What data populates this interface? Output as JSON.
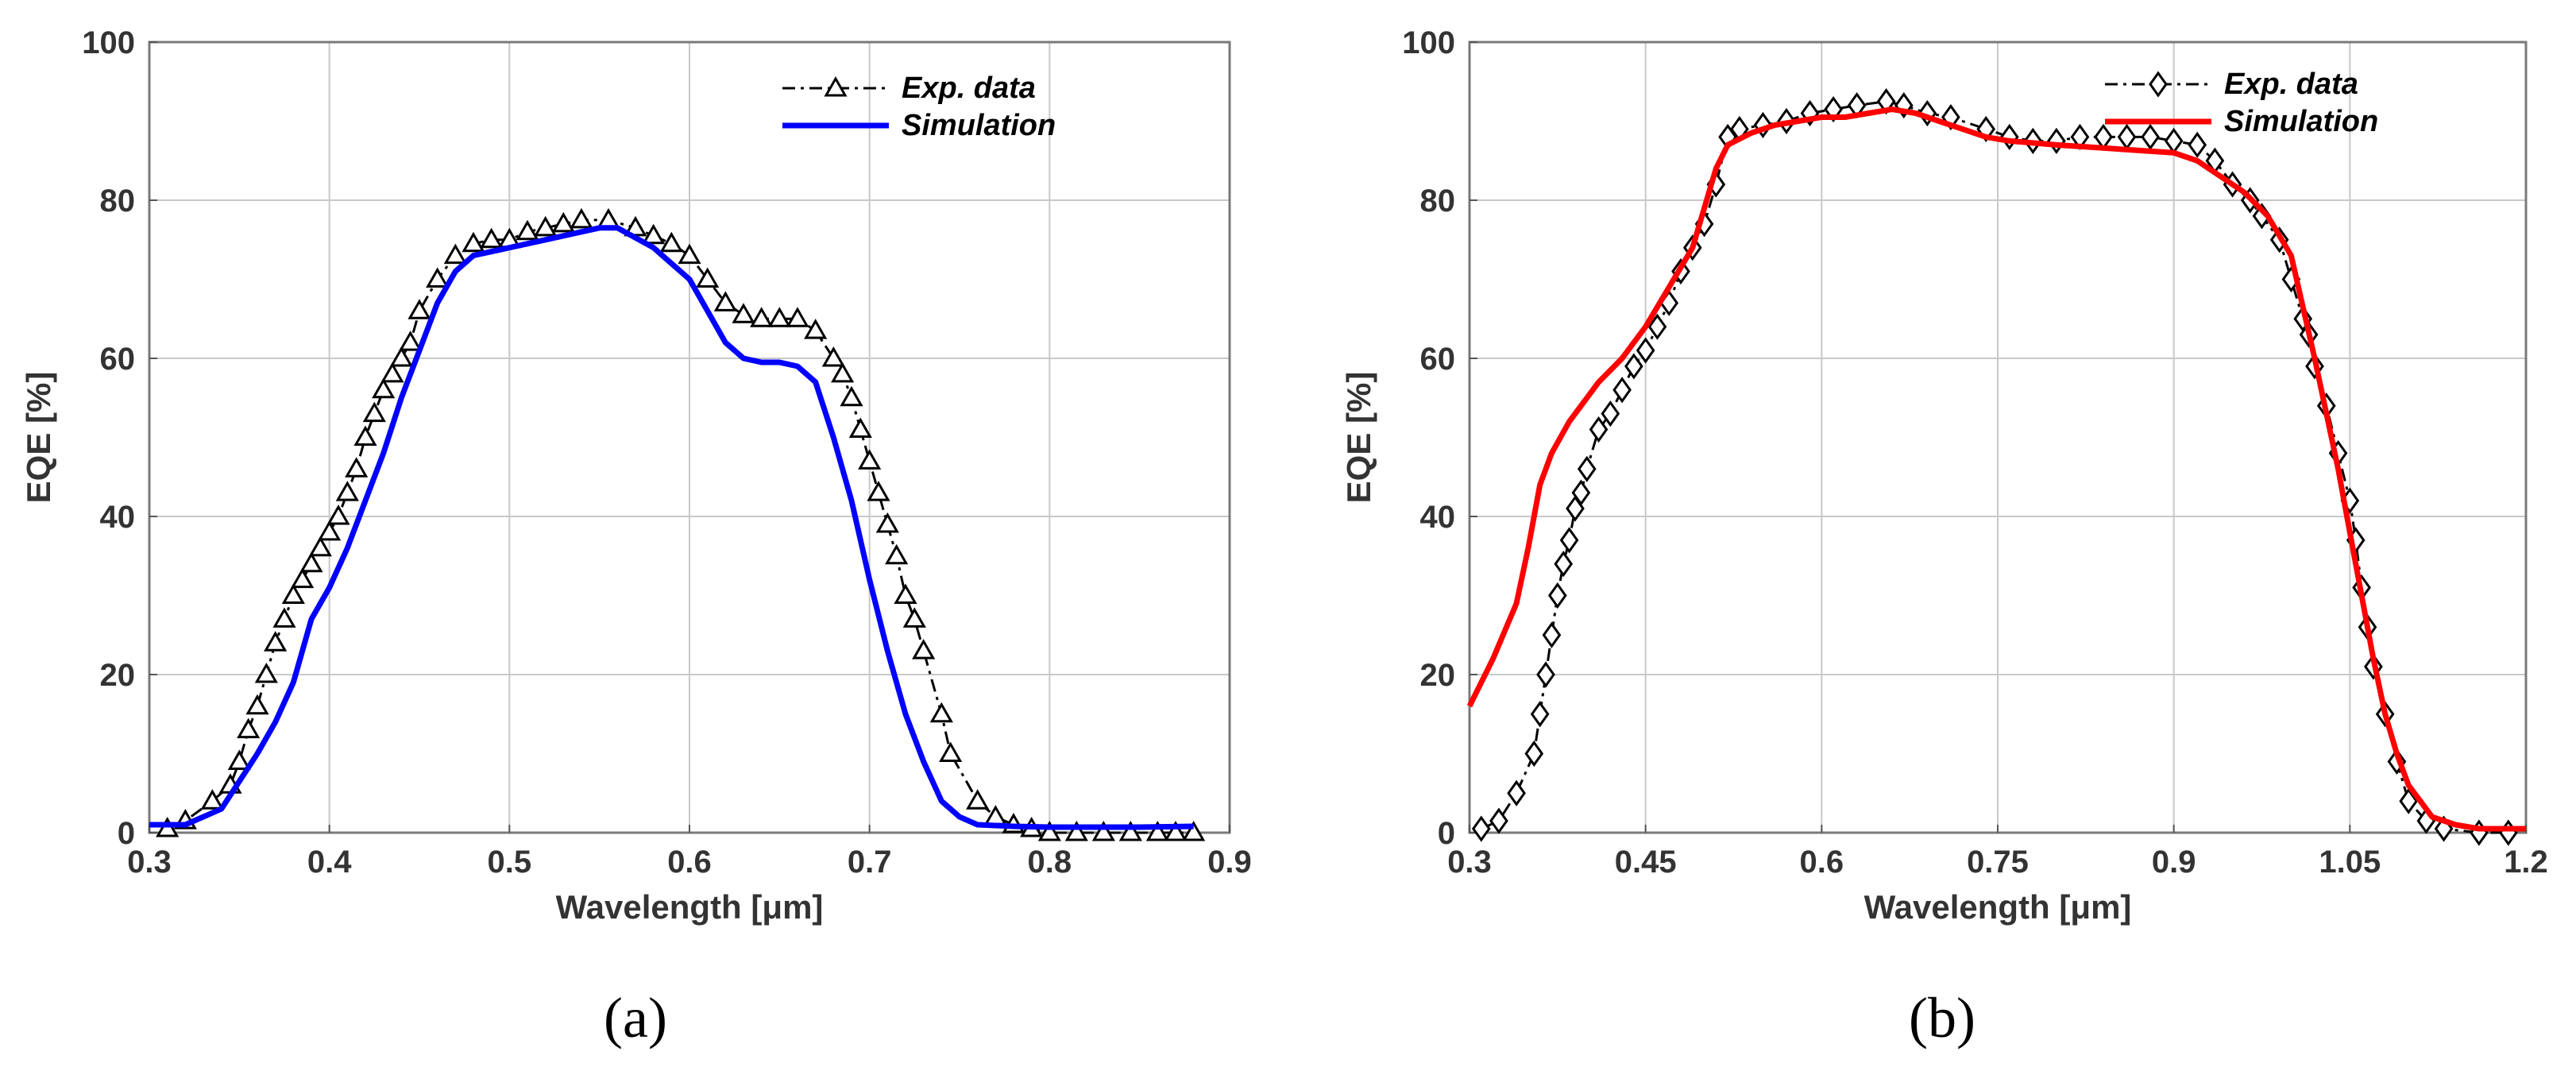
{
  "chart_data": [
    {
      "type": "line",
      "panel_label": "(a)",
      "xlabel": "Wavelength [μm]",
      "ylabel": "EQE [%]",
      "xlim": [
        0.3,
        0.9
      ],
      "ylim": [
        0,
        100
      ],
      "xticks": [
        "0.3",
        "0.4",
        "0.5",
        "0.6",
        "0.7",
        "0.8",
        "0.9"
      ],
      "xtick_values": [
        0.3,
        0.4,
        0.5,
        0.6,
        0.7,
        0.8,
        0.9
      ],
      "yticks": [
        "0",
        "20",
        "40",
        "60",
        "80",
        "100"
      ],
      "ytick_values": [
        0,
        20,
        40,
        60,
        80,
        100
      ],
      "grid": true,
      "legend_position": "top-right",
      "series": [
        {
          "name": "Exp. data",
          "color": "#000000",
          "style": "dash-dot",
          "marker": "triangle",
          "x": [
            0.31,
            0.32,
            0.335,
            0.345,
            0.35,
            0.355,
            0.36,
            0.365,
            0.37,
            0.375,
            0.38,
            0.385,
            0.39,
            0.395,
            0.4,
            0.405,
            0.41,
            0.415,
            0.42,
            0.425,
            0.43,
            0.435,
            0.44,
            0.445,
            0.45,
            0.46,
            0.47,
            0.48,
            0.49,
            0.5,
            0.51,
            0.52,
            0.53,
            0.54,
            0.555,
            0.57,
            0.58,
            0.59,
            0.6,
            0.61,
            0.62,
            0.63,
            0.64,
            0.65,
            0.66,
            0.67,
            0.68,
            0.685,
            0.69,
            0.695,
            0.7,
            0.705,
            0.71,
            0.715,
            0.72,
            0.725,
            0.73,
            0.74,
            0.745,
            0.76,
            0.77,
            0.78,
            0.79,
            0.8,
            0.815,
            0.83,
            0.845,
            0.86,
            0.87,
            0.88
          ],
          "y": [
            0.5,
            1.5,
            4,
            6,
            9,
            13,
            16,
            20,
            24,
            27,
            30,
            32,
            34,
            36,
            38,
            40,
            43,
            46,
            50,
            53,
            56,
            58,
            60,
            62,
            66,
            70,
            73,
            74.5,
            75,
            75,
            76,
            76.5,
            77,
            77.5,
            77.5,
            76.5,
            75.5,
            74.5,
            73,
            70,
            67,
            65.5,
            65,
            65,
            65,
            63.5,
            60,
            58,
            55,
            51,
            47,
            43,
            39,
            35,
            30,
            27,
            23,
            15,
            10,
            4,
            2,
            1,
            0.5,
            0,
            0,
            0,
            0,
            0,
            0,
            0
          ]
        },
        {
          "name": "Simulation",
          "color": "#0000ff",
          "style": "solid",
          "x": [
            0.3,
            0.32,
            0.34,
            0.36,
            0.37,
            0.38,
            0.385,
            0.39,
            0.4,
            0.41,
            0.42,
            0.43,
            0.44,
            0.45,
            0.46,
            0.47,
            0.48,
            0.5,
            0.52,
            0.54,
            0.55,
            0.56,
            0.58,
            0.6,
            0.61,
            0.62,
            0.63,
            0.64,
            0.65,
            0.66,
            0.67,
            0.68,
            0.69,
            0.7,
            0.71,
            0.72,
            0.73,
            0.74,
            0.75,
            0.76,
            0.78,
            0.8,
            0.85,
            0.88
          ],
          "y": [
            1,
            1,
            3,
            10,
            14,
            19,
            23,
            27,
            31,
            36,
            42,
            48,
            55,
            61,
            67,
            71,
            73,
            74,
            75,
            76,
            76.5,
            76.5,
            74,
            70,
            66,
            62,
            60,
            59.5,
            59.5,
            59,
            57,
            50,
            42,
            32,
            23,
            15,
            9,
            4,
            2,
            1,
            0.8,
            0.7,
            0.7,
            0.8
          ]
        }
      ]
    },
    {
      "type": "line",
      "panel_label": "(b)",
      "xlabel": "Wavelength [μm]",
      "ylabel": "EQE [%]",
      "xlim": [
        0.3,
        1.2
      ],
      "ylim": [
        0,
        100
      ],
      "xticks": [
        "0.3",
        "0.45",
        "0.6",
        "0.75",
        "0.9",
        "1.05",
        "1.2"
      ],
      "xtick_values": [
        0.3,
        0.45,
        0.6,
        0.75,
        0.9,
        1.05,
        1.2
      ],
      "yticks": [
        "0",
        "20",
        "40",
        "60",
        "80",
        "100"
      ],
      "ytick_values": [
        0,
        20,
        40,
        60,
        80,
        100
      ],
      "grid": true,
      "legend_position": "top-right",
      "series": [
        {
          "name": "Exp. data",
          "color": "#000000",
          "style": "dash-dot",
          "marker": "diamond",
          "x": [
            0.31,
            0.325,
            0.34,
            0.355,
            0.36,
            0.365,
            0.37,
            0.375,
            0.38,
            0.385,
            0.39,
            0.395,
            0.4,
            0.41,
            0.42,
            0.43,
            0.44,
            0.45,
            0.46,
            0.47,
            0.48,
            0.49,
            0.5,
            0.51,
            0.52,
            0.53,
            0.55,
            0.57,
            0.59,
            0.61,
            0.63,
            0.655,
            0.67,
            0.69,
            0.71,
            0.74,
            0.76,
            0.78,
            0.8,
            0.82,
            0.84,
            0.86,
            0.88,
            0.9,
            0.92,
            0.935,
            0.95,
            0.965,
            0.975,
            0.99,
            1.0,
            1.01,
            1.015,
            1.02,
            1.03,
            1.04,
            1.05,
            1.055,
            1.06,
            1.065,
            1.07,
            1.08,
            1.09,
            1.1,
            1.115,
            1.13,
            1.16,
            1.185
          ],
          "y": [
            0.5,
            1.5,
            5,
            10,
            15,
            20,
            25,
            30,
            34,
            37,
            41,
            43,
            46,
            51,
            53,
            56,
            59,
            61,
            64,
            67,
            71,
            74,
            77,
            82,
            88,
            89,
            89.5,
            90,
            91,
            91.5,
            92,
            92.5,
            92,
            91,
            90.5,
            89,
            88,
            87.5,
            87.5,
            88,
            88,
            88,
            88,
            87.5,
            87,
            85,
            82,
            80,
            78,
            75,
            70,
            65,
            63,
            59,
            54,
            48,
            42,
            37,
            31,
            26,
            21,
            15,
            9,
            4,
            1.5,
            0.5,
            0,
            0
          ]
        },
        {
          "name": "Simulation",
          "color": "#ff0000",
          "style": "solid",
          "x": [
            0.3,
            0.32,
            0.34,
            0.35,
            0.36,
            0.37,
            0.385,
            0.4,
            0.41,
            0.43,
            0.45,
            0.47,
            0.49,
            0.5,
            0.51,
            0.52,
            0.54,
            0.56,
            0.58,
            0.6,
            0.62,
            0.64,
            0.66,
            0.68,
            0.7,
            0.72,
            0.74,
            0.76,
            0.8,
            0.85,
            0.9,
            0.92,
            0.94,
            0.96,
            0.98,
            1.0,
            1.02,
            1.04,
            1.05,
            1.06,
            1.07,
            1.08,
            1.09,
            1.1,
            1.12,
            1.14,
            1.16,
            1.2
          ],
          "y": [
            16,
            22,
            29,
            36,
            44,
            48,
            52,
            55,
            57,
            60,
            64,
            69,
            74,
            79,
            84,
            87,
            88.5,
            89.5,
            90,
            90.5,
            90.5,
            91,
            91.5,
            91,
            90,
            89,
            88,
            87.5,
            87,
            86.5,
            86,
            85,
            83,
            81,
            78,
            73,
            60,
            46,
            38,
            30,
            22,
            15,
            10,
            6,
            2,
            1,
            0.5,
            0.5
          ]
        }
      ]
    }
  ]
}
